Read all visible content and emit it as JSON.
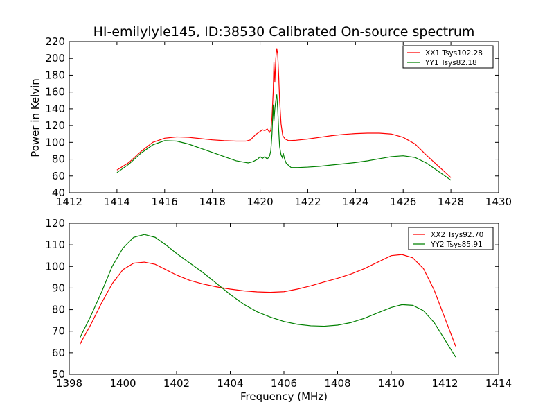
{
  "figure": {
    "title": "HI-emilylyle145, ID:38530 Calibrated On-source spectrum",
    "ylabel": "Power in Kelvin",
    "xlabel": "Frequency (MHz)"
  },
  "chart_data": [
    {
      "type": "line",
      "xlim": [
        1412,
        1430
      ],
      "ylim": [
        40,
        220
      ],
      "xticks": [
        1412,
        1414,
        1416,
        1418,
        1420,
        1422,
        1424,
        1426,
        1428,
        1430
      ],
      "yticks": [
        40,
        60,
        80,
        100,
        120,
        140,
        160,
        180,
        200,
        220
      ],
      "ylabel": "Power in Kelvin",
      "grid": false,
      "legend_position": "top-right",
      "series": [
        {
          "name": "XX1 Tsys102.28",
          "color": "#ff0000",
          "points": [
            [
              1414.0,
              67
            ],
            [
              1414.5,
              76
            ],
            [
              1415.0,
              89
            ],
            [
              1415.5,
              100
            ],
            [
              1416.0,
              105
            ],
            [
              1416.5,
              106.5
            ],
            [
              1417.0,
              106
            ],
            [
              1417.5,
              104.5
            ],
            [
              1418.0,
              103
            ],
            [
              1418.5,
              102
            ],
            [
              1419.0,
              101.5
            ],
            [
              1419.4,
              101.5
            ],
            [
              1419.6,
              103
            ],
            [
              1419.8,
              109
            ],
            [
              1420.0,
              113
            ],
            [
              1420.1,
              115
            ],
            [
              1420.2,
              114
            ],
            [
              1420.3,
              116
            ],
            [
              1420.4,
              112
            ],
            [
              1420.45,
              115
            ],
            [
              1420.5,
              130
            ],
            [
              1420.55,
              160
            ],
            [
              1420.58,
              196
            ],
            [
              1420.62,
              172
            ],
            [
              1420.66,
              200
            ],
            [
              1420.7,
              212
            ],
            [
              1420.74,
              205
            ],
            [
              1420.78,
              180
            ],
            [
              1420.82,
              150
            ],
            [
              1420.88,
              122
            ],
            [
              1420.95,
              108
            ],
            [
              1421.05,
              104
            ],
            [
              1421.2,
              102
            ],
            [
              1421.5,
              102.5
            ],
            [
              1422.0,
              104
            ],
            [
              1422.5,
              106
            ],
            [
              1423.0,
              108
            ],
            [
              1423.5,
              109.5
            ],
            [
              1424.0,
              110.5
            ],
            [
              1424.5,
              111
            ],
            [
              1425.0,
              111
            ],
            [
              1425.5,
              110
            ],
            [
              1426.0,
              106
            ],
            [
              1426.5,
              98
            ],
            [
              1427.0,
              84
            ],
            [
              1427.5,
              71
            ],
            [
              1428.0,
              58
            ]
          ]
        },
        {
          "name": "YY1 Tsys82.18",
          "color": "#008000",
          "points": [
            [
              1414.0,
              64
            ],
            [
              1414.5,
              74
            ],
            [
              1415.0,
              87
            ],
            [
              1415.5,
              97
            ],
            [
              1416.0,
              102
            ],
            [
              1416.5,
              101.5
            ],
            [
              1417.0,
              98
            ],
            [
              1417.5,
              93
            ],
            [
              1418.0,
              88
            ],
            [
              1418.5,
              83
            ],
            [
              1419.0,
              78
            ],
            [
              1419.5,
              75.5
            ],
            [
              1419.7,
              77
            ],
            [
              1419.9,
              80
            ],
            [
              1420.0,
              83
            ],
            [
              1420.1,
              81
            ],
            [
              1420.2,
              83
            ],
            [
              1420.3,
              80
            ],
            [
              1420.4,
              84
            ],
            [
              1420.45,
              90
            ],
            [
              1420.5,
              110
            ],
            [
              1420.55,
              145
            ],
            [
              1420.58,
              125
            ],
            [
              1420.62,
              140
            ],
            [
              1420.66,
              150
            ],
            [
              1420.7,
              157
            ],
            [
              1420.74,
              140
            ],
            [
              1420.78,
              115
            ],
            [
              1420.82,
              95
            ],
            [
              1420.88,
              85
            ],
            [
              1420.93,
              82
            ],
            [
              1420.97,
              87
            ],
            [
              1421.03,
              80
            ],
            [
              1421.1,
              75
            ],
            [
              1421.3,
              70
            ],
            [
              1421.6,
              70
            ],
            [
              1422.0,
              70.5
            ],
            [
              1422.5,
              71.5
            ],
            [
              1423.0,
              73
            ],
            [
              1423.5,
              74.5
            ],
            [
              1424.0,
              76
            ],
            [
              1424.5,
              78
            ],
            [
              1425.0,
              80.5
            ],
            [
              1425.5,
              83
            ],
            [
              1426.0,
              84
            ],
            [
              1426.5,
              82
            ],
            [
              1427.0,
              75
            ],
            [
              1427.5,
              65
            ],
            [
              1428.0,
              55
            ]
          ]
        }
      ]
    },
    {
      "type": "line",
      "xlim": [
        1398,
        1414
      ],
      "ylim": [
        50,
        120
      ],
      "xticks": [
        1398,
        1400,
        1402,
        1404,
        1406,
        1408,
        1410,
        1412,
        1414
      ],
      "yticks": [
        50,
        60,
        70,
        80,
        90,
        100,
        110,
        120
      ],
      "xlabel": "Frequency (MHz)",
      "grid": false,
      "legend_position": "top-right",
      "series": [
        {
          "name": "XX2 Tsys92.70",
          "color": "#ff0000",
          "points": [
            [
              1398.4,
              64
            ],
            [
              1398.8,
              73
            ],
            [
              1399.2,
              83
            ],
            [
              1399.6,
              92
            ],
            [
              1400.0,
              98.5
            ],
            [
              1400.4,
              101.5
            ],
            [
              1400.8,
              102
            ],
            [
              1401.2,
              101
            ],
            [
              1401.6,
              98.5
            ],
            [
              1402.0,
              96
            ],
            [
              1402.5,
              93.5
            ],
            [
              1403.0,
              91.8
            ],
            [
              1403.5,
              90.5
            ],
            [
              1404.0,
              89.5
            ],
            [
              1404.5,
              88.7
            ],
            [
              1405.0,
              88.2
            ],
            [
              1405.5,
              88
            ],
            [
              1406.0,
              88.3
            ],
            [
              1406.5,
              89.5
            ],
            [
              1407.0,
              91
            ],
            [
              1407.5,
              92.8
            ],
            [
              1408.0,
              94.5
            ],
            [
              1408.5,
              96.5
            ],
            [
              1409.0,
              99
            ],
            [
              1409.5,
              102
            ],
            [
              1410.0,
              105
            ],
            [
              1410.4,
              105.5
            ],
            [
              1410.8,
              104
            ],
            [
              1411.2,
              99
            ],
            [
              1411.6,
              89
            ],
            [
              1412.0,
              76
            ],
            [
              1412.4,
              63
            ]
          ]
        },
        {
          "name": "YY2 Tsys85.91",
          "color": "#008000",
          "points": [
            [
              1398.4,
              67
            ],
            [
              1398.8,
              77
            ],
            [
              1399.2,
              88
            ],
            [
              1399.6,
              100
            ],
            [
              1400.0,
              108.5
            ],
            [
              1400.4,
              113.5
            ],
            [
              1400.8,
              114.8
            ],
            [
              1401.2,
              113.5
            ],
            [
              1401.6,
              110
            ],
            [
              1402.0,
              106
            ],
            [
              1402.5,
              101.5
            ],
            [
              1403.0,
              97
            ],
            [
              1403.5,
              92
            ],
            [
              1404.0,
              87
            ],
            [
              1404.5,
              82.5
            ],
            [
              1405.0,
              79
            ],
            [
              1405.5,
              76.5
            ],
            [
              1406.0,
              74.5
            ],
            [
              1406.5,
              73.2
            ],
            [
              1407.0,
              72.5
            ],
            [
              1407.5,
              72.3
            ],
            [
              1408.0,
              72.8
            ],
            [
              1408.5,
              74
            ],
            [
              1409.0,
              76
            ],
            [
              1409.5,
              78.5
            ],
            [
              1410.0,
              81
            ],
            [
              1410.4,
              82.3
            ],
            [
              1410.8,
              82
            ],
            [
              1411.2,
              79.5
            ],
            [
              1411.6,
              74
            ],
            [
              1412.0,
              66
            ],
            [
              1412.4,
              58
            ]
          ]
        }
      ]
    }
  ]
}
